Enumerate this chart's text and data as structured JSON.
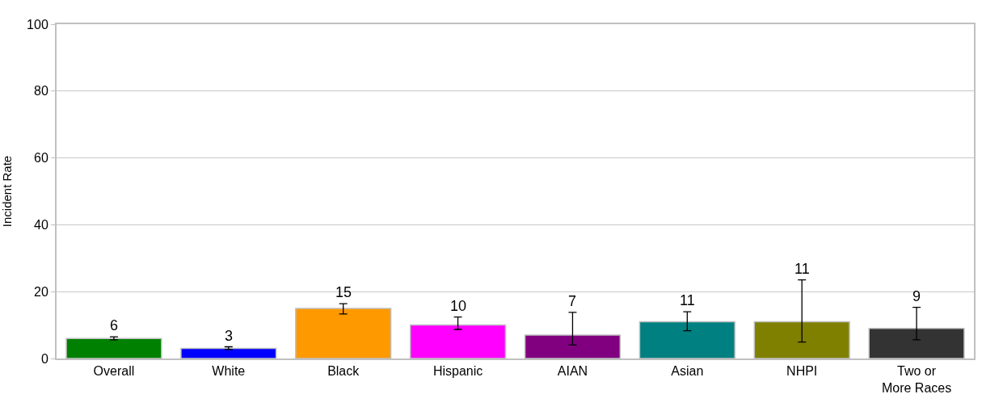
{
  "chart_data": {
    "type": "bar",
    "ylabel": "Incident Rate",
    "categories": [
      "Overall",
      "White",
      "Black",
      "Hispanic",
      "AIAN",
      "Asian",
      "NHPI",
      "Two or More Races"
    ],
    "values": [
      6,
      3,
      15,
      10,
      7,
      11,
      11,
      9
    ],
    "colors": [
      "#008000",
      "#0000ff",
      "#ff9900",
      "#ff00ff",
      "#800080",
      "#008080",
      "#808000",
      "#333333"
    ],
    "errors": [
      [
        5.6,
        6.5
      ],
      [
        2.7,
        3.5
      ],
      [
        13.3,
        16.4
      ],
      [
        8.7,
        12.4
      ],
      [
        4.0,
        13.8
      ],
      [
        8.3,
        14.0
      ],
      [
        4.9,
        23.5
      ],
      [
        5.6,
        15.3
      ]
    ],
    "data_labels": true,
    "ylim": [
      0,
      100
    ],
    "yticks": [
      0,
      20,
      40,
      60,
      80,
      100
    ],
    "grid": "y"
  }
}
